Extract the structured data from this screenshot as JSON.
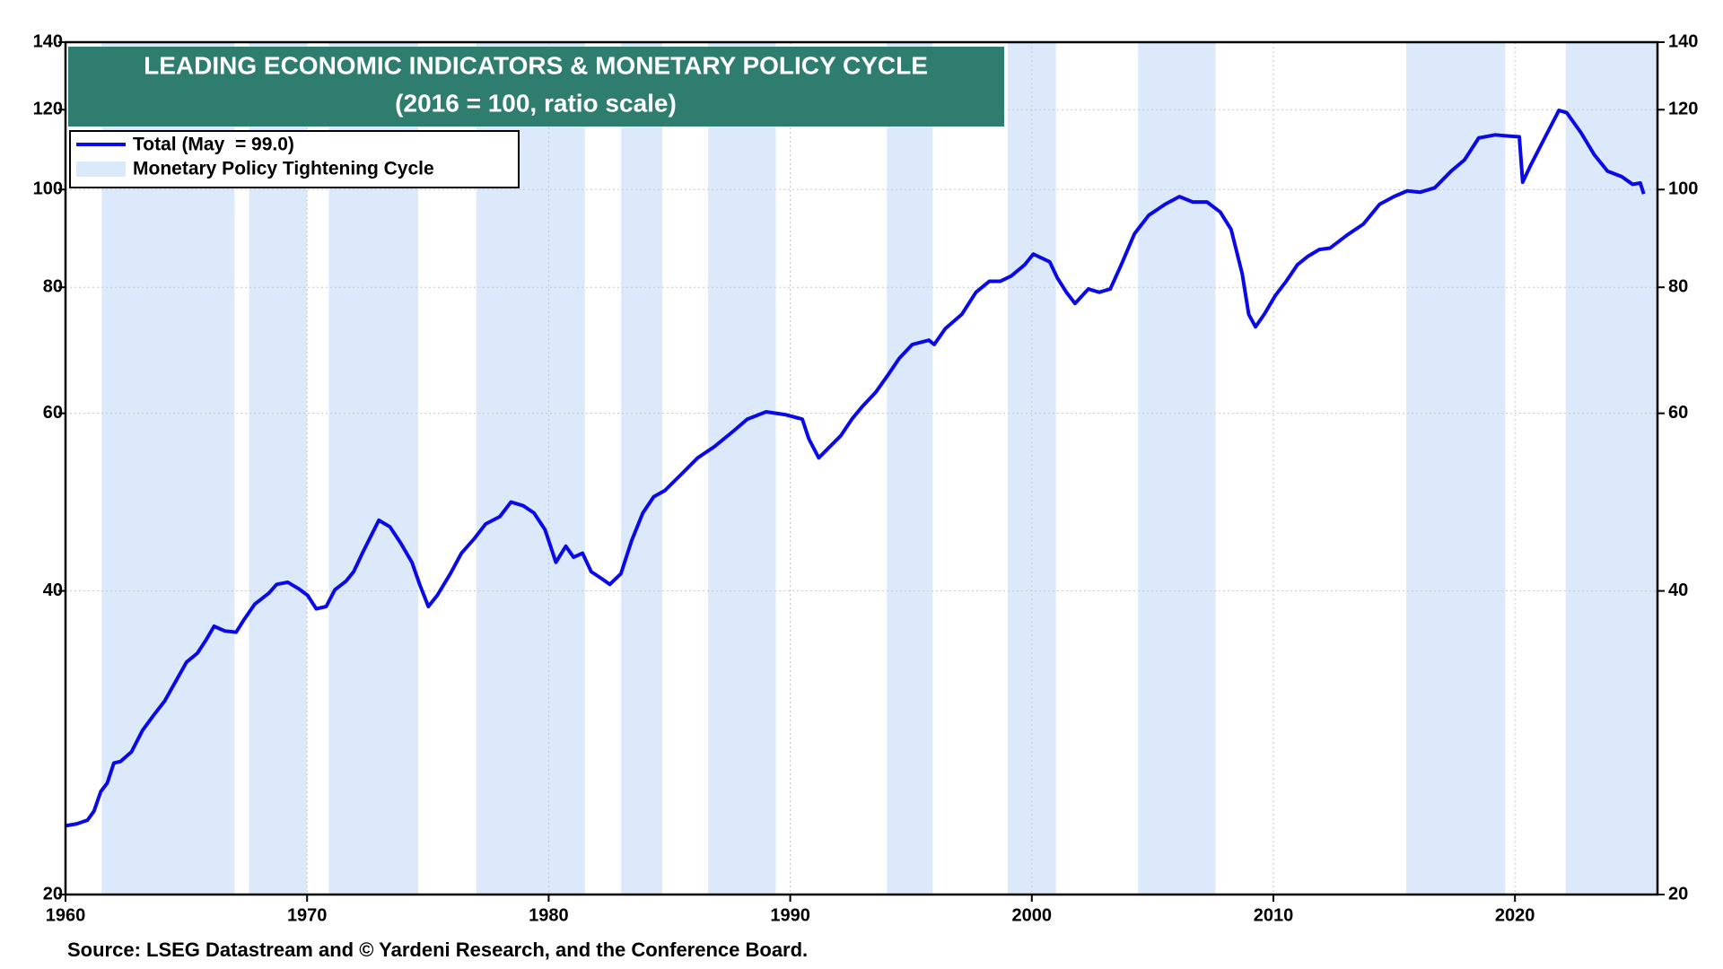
{
  "chart_data": {
    "type": "line",
    "title": "LEADING ECONOMIC INDICATORS & MONETARY POLICY CYCLE",
    "subtitle": "(2016 = 100, ratio scale)",
    "source": "Source: LSEG Datastream and © Yardeni Research, and the Conference Board.",
    "log_scale": true,
    "grid": true,
    "legend": "upper left",
    "xlim": [
      1960,
      2025.9
    ],
    "xticks": [
      1960,
      1970,
      1980,
      1990,
      2000,
      2010,
      2020
    ],
    "ylim": [
      20,
      140
    ],
    "yticks": [
      20,
      40,
      60,
      80,
      100,
      120,
      140
    ],
    "y2lim": [
      20,
      140
    ],
    "y2ticks": [
      20,
      40,
      60,
      80,
      100,
      120,
      140
    ],
    "shading": {
      "name": "Monetary Policy Tightening Cycle",
      "color": "#dbe9fb",
      "ranges": [
        [
          1961.5,
          1967.0
        ],
        [
          1967.6,
          1970.0
        ],
        [
          1970.9,
          1974.6
        ],
        [
          1977.0,
          1981.5
        ],
        [
          1983.0,
          1984.7
        ],
        [
          1986.6,
          1989.4
        ],
        [
          1994.0,
          1995.9
        ],
        [
          1999.0,
          2001.0
        ],
        [
          2004.4,
          2007.6
        ],
        [
          2015.5,
          2019.6
        ],
        [
          2022.1,
          2025.9
        ]
      ]
    },
    "series": [
      {
        "name": "Total (May  = 99.0)",
        "color": "#0a0ae6",
        "x": [
          1960.0,
          1960.46,
          1960.91,
          1961.18,
          1961.46,
          1961.73,
          1962.0,
          1962.28,
          1962.73,
          1963.19,
          1963.64,
          1964.1,
          1964.55,
          1965.01,
          1965.46,
          1965.83,
          1966.15,
          1966.6,
          1967.06,
          1967.37,
          1967.83,
          1968.42,
          1968.74,
          1969.2,
          1969.65,
          1970.02,
          1970.38,
          1970.79,
          1971.15,
          1971.61,
          1971.93,
          1972.29,
          1972.97,
          1973.43,
          1973.88,
          1974.34,
          1974.66,
          1975.02,
          1975.39,
          1975.93,
          1976.39,
          1976.93,
          1977.39,
          1977.98,
          1978.44,
          1978.94,
          1979.39,
          1979.85,
          1980.3,
          1980.71,
          1981.03,
          1981.4,
          1981.76,
          1982.22,
          1982.53,
          1982.99,
          1983.44,
          1983.9,
          1984.35,
          1984.81,
          1985.49,
          1986.17,
          1986.86,
          1987.68,
          1988.22,
          1989.0,
          1989.82,
          1990.5,
          1990.77,
          1991.18,
          1991.64,
          1992.09,
          1992.55,
          1993.0,
          1993.55,
          1994.05,
          1994.51,
          1995.05,
          1995.74,
          1995.96,
          1996.42,
          1997.1,
          1997.69,
          1998.24,
          1998.69,
          1999.15,
          1999.7,
          2000.06,
          2000.74,
          2001.06,
          2001.43,
          2001.79,
          2002.34,
          2002.79,
          2003.25,
          2003.7,
          2004.25,
          2004.84,
          2005.52,
          2006.11,
          2006.66,
          2007.25,
          2007.8,
          2008.25,
          2008.71,
          2008.98,
          2009.26,
          2009.62,
          2010.08,
          2010.53,
          2010.99,
          2011.44,
          2011.9,
          2012.35,
          2013.04,
          2013.72,
          2014.4,
          2014.99,
          2015.54,
          2016.08,
          2016.68,
          2017.36,
          2017.91,
          2018.5,
          2019.18,
          2019.73,
          2020.18,
          2020.32,
          2020.64,
          2021.23,
          2021.82,
          2022.14,
          2022.73,
          2023.28,
          2023.83,
          2024.42,
          2024.87,
          2025.19,
          2025.33
        ],
        "values": [
          23.4,
          23.5,
          23.7,
          24.2,
          25.3,
          25.8,
          27.0,
          27.1,
          27.7,
          29.1,
          30.1,
          31.1,
          32.5,
          34.0,
          34.7,
          35.8,
          36.9,
          36.5,
          36.4,
          37.4,
          38.8,
          39.8,
          40.6,
          40.8,
          40.2,
          39.6,
          38.4,
          38.6,
          40.1,
          40.9,
          41.8,
          43.6,
          47.0,
          46.3,
          44.6,
          42.7,
          40.6,
          38.6,
          39.6,
          41.6,
          43.6,
          45.1,
          46.6,
          47.4,
          49.0,
          48.6,
          47.8,
          46.0,
          42.7,
          44.3,
          43.2,
          43.6,
          41.8,
          41.1,
          40.6,
          41.6,
          44.9,
          47.8,
          49.6,
          50.3,
          52.2,
          54.2,
          55.6,
          57.7,
          59.2,
          60.2,
          59.8,
          59.2,
          56.6,
          54.2,
          55.6,
          57.0,
          59.2,
          61.0,
          63.0,
          65.5,
          68.0,
          70.2,
          70.9,
          70.2,
          72.8,
          75.2,
          79.1,
          81.1,
          81.1,
          82.1,
          84.2,
          86.3,
          84.8,
          81.7,
          79.1,
          77.1,
          79.7,
          79.1,
          79.7,
          84.2,
          90.4,
          94.3,
          96.7,
          98.4,
          97.2,
          97.2,
          95.0,
          91.3,
          82.5,
          75.2,
          73.1,
          75.2,
          78.5,
          81.1,
          84.2,
          85.9,
          87.2,
          87.5,
          90.1,
          92.4,
          96.7,
          98.4,
          99.7,
          99.4,
          100.4,
          104.3,
          107.0,
          112.5,
          113.3,
          113.0,
          112.8,
          101.7,
          105.6,
          112.5,
          119.8,
          119.2,
          113.9,
          108.3,
          104.3,
          103.0,
          101.2,
          101.5,
          99.0
        ]
      }
    ]
  }
}
